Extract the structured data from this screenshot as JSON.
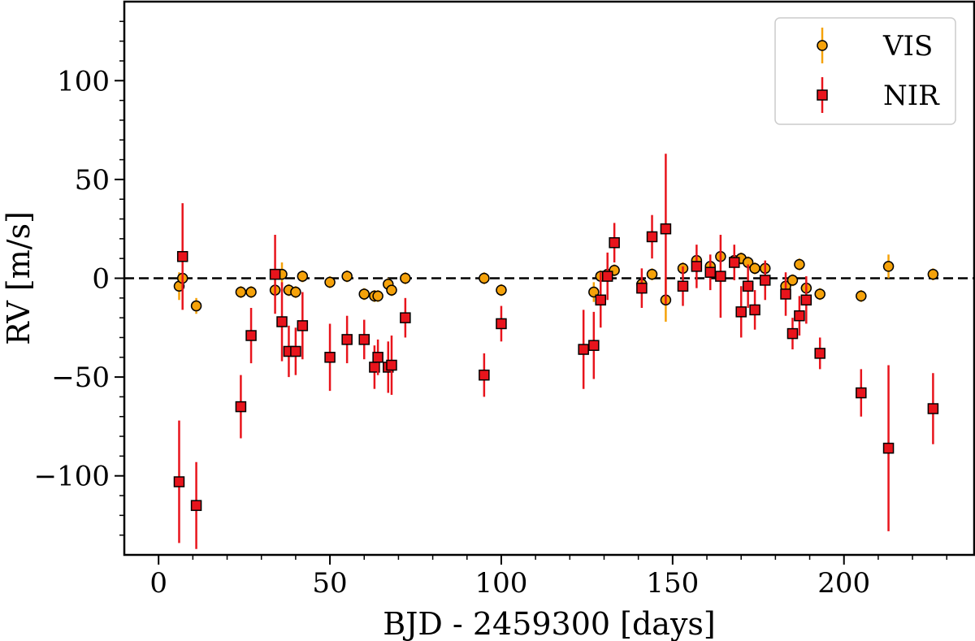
{
  "chart_data": {
    "type": "scatter",
    "xlabel": "BJD - 2459300 [days]",
    "ylabel": "RV [m/s]",
    "xlim": [
      -10,
      238
    ],
    "ylim": [
      -140,
      140
    ],
    "xticks": [
      0,
      50,
      100,
      150,
      200
    ],
    "xtick_labels": [
      "0",
      "50",
      "100",
      "150",
      "200"
    ],
    "yticks": [
      -100,
      -50,
      0,
      50,
      100
    ],
    "ytick_labels": [
      "−100",
      "−50",
      "0",
      "50",
      "100"
    ],
    "reference_line_y": 0,
    "grid": false,
    "legend_position": "top-right",
    "series": [
      {
        "name": "VIS",
        "marker": "circle",
        "color": "#f5a20a",
        "errcolor": "#f5a20a",
        "x": [
          6,
          7,
          11,
          24,
          27,
          34,
          36,
          38,
          40,
          42,
          50,
          55,
          60,
          63,
          64,
          67,
          68,
          72,
          95,
          100,
          127,
          129,
          131,
          133,
          141,
          144,
          148,
          153,
          157,
          161,
          164,
          168,
          170,
          172,
          174,
          177,
          183,
          185,
          187,
          189,
          193,
          205,
          213,
          226
        ],
        "y": [
          -4,
          0,
          -14,
          -7,
          -7,
          -6,
          2,
          -6,
          -7,
          1,
          -2,
          1,
          -8,
          -9,
          -9,
          -3,
          -6,
          0,
          0,
          -6,
          -7,
          1,
          2,
          4,
          -3,
          2,
          -11,
          5,
          9,
          6,
          11,
          9,
          10,
          8,
          5,
          5,
          -4,
          -1,
          7,
          -5,
          -8,
          -9,
          6,
          2
        ],
        "err": [
          7,
          3,
          4,
          3,
          3,
          3,
          6,
          3,
          3,
          3,
          3,
          3,
          3,
          3,
          3,
          3,
          3,
          3,
          3,
          3,
          5,
          3,
          3,
          3,
          3,
          3,
          11,
          3,
          3,
          3,
          3,
          3,
          3,
          3,
          3,
          3,
          3,
          3,
          3,
          3,
          3,
          3,
          6,
          3
        ]
      },
      {
        "name": "NIR",
        "marker": "square",
        "color": "#e8141c",
        "errcolor": "#e8141c",
        "x": [
          6,
          7,
          11,
          24,
          27,
          34,
          36,
          38,
          40,
          42,
          50,
          55,
          60,
          63,
          64,
          67,
          68,
          72,
          95,
          100,
          124,
          127,
          129,
          131,
          133,
          141,
          144,
          148,
          153,
          157,
          161,
          164,
          168,
          170,
          172,
          174,
          177,
          183,
          185,
          187,
          189,
          193,
          205,
          213,
          226
        ],
        "y": [
          -103,
          11,
          -115,
          -65,
          -29,
          2,
          -22,
          -37,
          -37,
          -24,
          -40,
          -31,
          -31,
          -45,
          -40,
          -45,
          -44,
          -20,
          -49,
          -23,
          -36,
          -34,
          -11,
          1,
          18,
          -5,
          21,
          25,
          -4,
          6,
          3,
          1,
          8,
          -17,
          -4,
          -16,
          -1,
          -8,
          -28,
          -19,
          -11,
          -38,
          -58,
          -86,
          -66
        ],
        "err": [
          31,
          27,
          22,
          16,
          14,
          20,
          20,
          13,
          12,
          17,
          17,
          12,
          10,
          11,
          9,
          13,
          15,
          10,
          11,
          9,
          20,
          17,
          14,
          12,
          10,
          10,
          11,
          38,
          10,
          11,
          9,
          21,
          9,
          13,
          11,
          10,
          10,
          11,
          8,
          10,
          12,
          8,
          12,
          42,
          18
        ]
      }
    ]
  }
}
